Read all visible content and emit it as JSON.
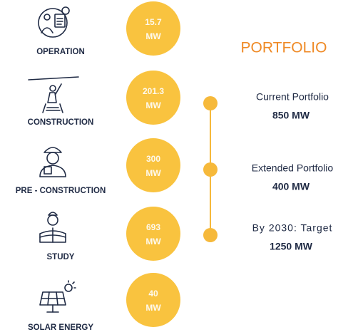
{
  "stages": [
    {
      "label": "OPERATION",
      "value": "15.7",
      "unit": "MW"
    },
    {
      "label": "CONSTRUCTION",
      "value": "201.3",
      "unit": "MW"
    },
    {
      "label": "PRE - CONSTRUCTION",
      "value": "300",
      "unit": "MW"
    },
    {
      "label": "STUDY",
      "value": "693",
      "unit": "MW"
    },
    {
      "label": "SOLAR ENERGY",
      "value": "40",
      "unit": "MW"
    }
  ],
  "portfolio": {
    "title": "PORTFOLIO",
    "items": [
      {
        "label": "Current Portfolio",
        "value": "850 MW"
      },
      {
        "label": "Extended Portfolio",
        "value": "400 MW"
      },
      {
        "label": "By 2030: Target",
        "value": "1250 MW"
      }
    ]
  }
}
